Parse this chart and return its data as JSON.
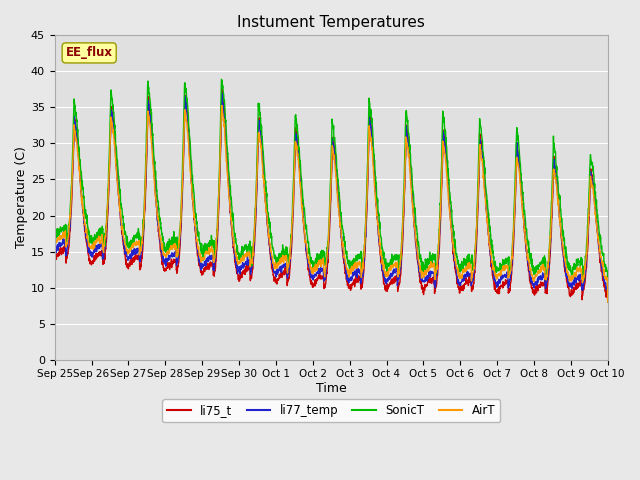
{
  "title": "Instument Temperatures",
  "xlabel": "Time",
  "ylabel": "Temperature (C)",
  "ylim": [
    0,
    45
  ],
  "n_days": 15,
  "annotation_text": "EE_flux",
  "series_colors": {
    "li75_t": "#cc0000",
    "li77_temp": "#2222cc",
    "SonicT": "#00bb00",
    "AirT": "#ff9900"
  },
  "xtick_labels": [
    "Sep 25",
    "Sep 26",
    "Sep 27",
    "Sep 28",
    "Sep 29",
    "Sep 30",
    "Oct 1",
    "Oct 2",
    "Oct 3",
    "Oct 4",
    "Oct 5",
    "Oct 6",
    "Oct 7",
    "Oct 8",
    "Oct 9",
    "Oct 10"
  ],
  "ytick_values": [
    0,
    5,
    10,
    15,
    20,
    25,
    30,
    35,
    40,
    45
  ],
  "grid_color": "#ffffff",
  "fig_bg": "#e8e8e8",
  "plot_bg": "#e0e0e0",
  "line_width": 1.0,
  "figsize": [
    6.4,
    4.8
  ],
  "dpi": 100
}
